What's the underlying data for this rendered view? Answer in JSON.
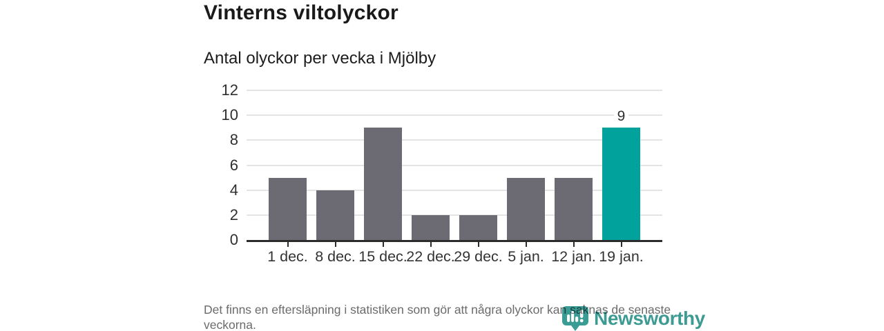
{
  "page": {
    "title": "Vinterns viltolyckor",
    "subtitle": "Antal olyckor per vecka i Mjölby",
    "footnote": "Det finns en eftersläpning i statistiken som gör att några olyckor kan saknas de senaste veckorna."
  },
  "branding": {
    "logo_text": "Newsworthy",
    "logo_icon": "newsworthy-pin-barchart-icon"
  },
  "colors": {
    "bar_default": "#6c6b74",
    "bar_highlight": "#00a29b",
    "axis": "#2b2b2b",
    "gridline": "#e4e4e4",
    "tick": "#2b2b2b",
    "logo_teal": "#3e9b94"
  },
  "chart_data": {
    "type": "bar",
    "title": "Vinterns viltolyckor",
    "subtitle": "Antal olyckor per vecka i Mjölby",
    "categories": [
      "1 dec.",
      "8 dec.",
      "15 dec.",
      "22 dec.",
      "29 dec.",
      "5 jan.",
      "12 jan.",
      "19 jan."
    ],
    "values": [
      5,
      4,
      9,
      2,
      2,
      5,
      5,
      9
    ],
    "highlighted_index": 7,
    "value_labels": {
      "7": "9"
    },
    "xlabel": "",
    "ylabel": "",
    "ylim": [
      0,
      12
    ],
    "yticks": [
      0,
      2,
      4,
      6,
      8,
      10,
      12
    ],
    "grid": "horizontal",
    "legend": "none"
  }
}
